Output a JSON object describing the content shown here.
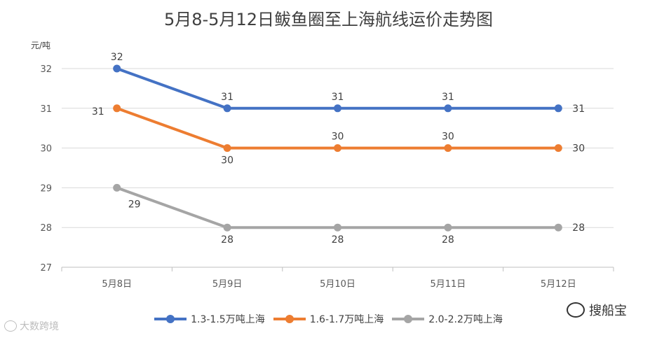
{
  "chart_data": {
    "type": "line",
    "title": "5月8-5月12日鲅鱼圈至上海航线运价走势图",
    "unit_label": "元/吨",
    "categories": [
      "5月8日",
      "5月9日",
      "5月10日",
      "5月11日",
      "5月12日"
    ],
    "ylim": [
      27,
      32
    ],
    "yticks": [
      27,
      28,
      29,
      30,
      31,
      32
    ],
    "grid": true,
    "legend_position": "bottom",
    "series": [
      {
        "name": "1.3-1.5万吨上海",
        "color": "#4472C4",
        "values": [
          32,
          31,
          31,
          31,
          31
        ]
      },
      {
        "name": "1.6-1.7万吨上海",
        "color": "#ED7D31",
        "values": [
          31,
          30,
          30,
          30,
          30
        ]
      },
      {
        "name": "2.0-2.2万吨上海",
        "color": "#A5A5A5",
        "values": [
          29,
          28,
          28,
          28,
          28
        ]
      }
    ]
  },
  "watermarks": {
    "left": "大数跨境",
    "right": "搜船宝"
  },
  "icons": {
    "left": "weibo-icon",
    "right": "wechat-icon"
  }
}
